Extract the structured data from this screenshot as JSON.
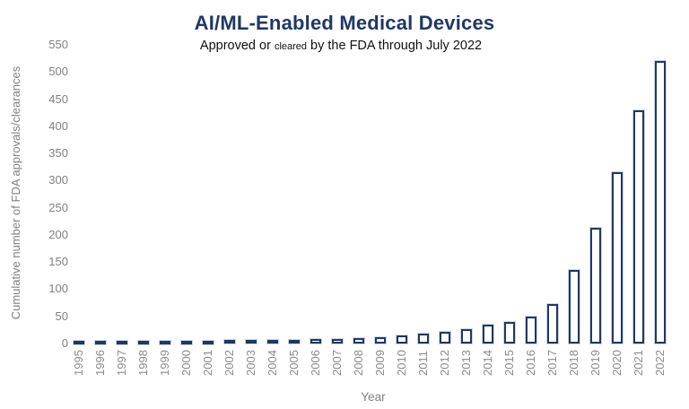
{
  "title": "AI/ML-Enabled Medical Devices",
  "subtitle": {
    "part1": "Approved or ",
    "small": "cleared",
    "part2": " by the FDA through July 2022"
  },
  "axes": {
    "x_title": "Year",
    "y_title": "Cumulative number of FDA approvals/clearances"
  },
  "chart_data": {
    "type": "bar",
    "title": "AI/ML-Enabled Medical Devices",
    "subtitle": "Approved or cleared by the FDA through July 2022",
    "xlabel": "Year",
    "ylabel": "Cumulative number of FDA approvals/clearances",
    "ylim": [
      0,
      550
    ],
    "ytick_step": 50,
    "grid": false,
    "legend": false,
    "bar_style": "hollow-outline",
    "categories": [
      "1995",
      "1996",
      "1997",
      "1998",
      "1999",
      "2000",
      "2001",
      "2002",
      "2003",
      "2004",
      "2005",
      "2006",
      "2007",
      "2008",
      "2009",
      "2010",
      "2011",
      "2012",
      "2013",
      "2014",
      "2015",
      "2016",
      "2017",
      "2018",
      "2019",
      "2020",
      "2021",
      "2022"
    ],
    "values": [
      1,
      1,
      2,
      3,
      4,
      4,
      5,
      6,
      6,
      7,
      7,
      8,
      8,
      10,
      12,
      15,
      18,
      22,
      26,
      34,
      40,
      49,
      72,
      135,
      213,
      315,
      430,
      521
    ]
  },
  "colors": {
    "title_navy": "#1f3864",
    "bar_outline": "#1f3864",
    "bar_fill": "#ffffff",
    "bar_halo": "#b0c0d6",
    "axis_text_gray": "#808080",
    "background": "#ffffff"
  }
}
